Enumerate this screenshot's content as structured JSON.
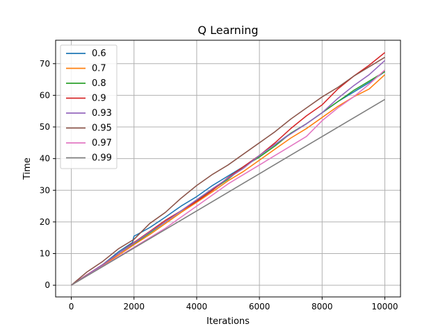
{
  "chart_data": {
    "type": "line",
    "title": "Q Learning",
    "xlabel": "Iterations",
    "ylabel": "Time",
    "xlim": [
      -500,
      10500
    ],
    "ylim": [
      -3.7,
      77.4
    ],
    "xticks": [
      0,
      2000,
      4000,
      6000,
      8000,
      10000
    ],
    "yticks": [
      0,
      10,
      20,
      30,
      40,
      50,
      60,
      70
    ],
    "grid": true,
    "legend_position": "upper left",
    "series": [
      {
        "name": "0.6",
        "color": "#1f77b4",
        "x": [
          0,
          500,
          1000,
          1500,
          1950,
          2000,
          2100,
          2500,
          3000,
          3500,
          4000,
          4500,
          5000,
          5500,
          6000,
          6500,
          7000,
          7500,
          8000,
          8500,
          9000,
          9500,
          10000
        ],
        "y": [
          0,
          3.2,
          6.5,
          10.5,
          13.5,
          15.5,
          16.0,
          18.2,
          21.5,
          25.0,
          28.0,
          31.5,
          34.5,
          37.5,
          41.0,
          44.5,
          48.0,
          51.0,
          54.5,
          58.0,
          61.0,
          64.0,
          67.5
        ]
      },
      {
        "name": "0.7",
        "color": "#ff7f0e",
        "x": [
          0,
          500,
          1000,
          1500,
          2000,
          2500,
          3000,
          3500,
          4000,
          4500,
          5000,
          5500,
          6000,
          6500,
          7000,
          7500,
          8000,
          8500,
          9000,
          9500,
          10000
        ],
        "y": [
          0,
          3.0,
          6.2,
          9.5,
          12.8,
          16.0,
          19.5,
          23.0,
          26.2,
          29.5,
          33.0,
          36.0,
          39.5,
          43.0,
          46.5,
          49.5,
          53.0,
          56.5,
          59.5,
          62.0,
          66.5
        ]
      },
      {
        "name": "0.8",
        "color": "#2ca02c",
        "x": [
          0,
          500,
          1000,
          1500,
          2000,
          2500,
          3000,
          3500,
          4000,
          4500,
          5000,
          5500,
          6000,
          6500,
          7000,
          7500,
          8000,
          8500,
          9000,
          9500,
          10000
        ],
        "y": [
          0,
          3.2,
          6.5,
          10.0,
          13.2,
          16.5,
          20.0,
          23.5,
          26.8,
          30.2,
          33.5,
          37.5,
          40.5,
          44.0,
          48.0,
          51.0,
          54.5,
          58.0,
          61.5,
          64.5,
          67.5
        ]
      },
      {
        "name": "0.9",
        "color": "#d62728",
        "x": [
          0,
          500,
          1000,
          1500,
          2000,
          2500,
          3000,
          3500,
          4000,
          4500,
          5000,
          5500,
          6000,
          6500,
          7000,
          7500,
          8000,
          8500,
          9000,
          9500,
          10000
        ],
        "y": [
          0,
          3.3,
          6.5,
          10.0,
          13.5,
          17.0,
          20.5,
          23.5,
          26.5,
          30.0,
          34.0,
          37.5,
          41.0,
          45.0,
          49.5,
          53.5,
          57.0,
          62.0,
          66.0,
          69.5,
          73.5
        ]
      },
      {
        "name": "0.93",
        "color": "#9467bd",
        "x": [
          0,
          500,
          1000,
          1500,
          2000,
          2500,
          3000,
          3500,
          4000,
          4500,
          5000,
          5500,
          6000,
          6500,
          7000,
          7500,
          8000,
          8500,
          9000,
          9500,
          10000
        ],
        "y": [
          0,
          3.2,
          6.5,
          10.0,
          13.3,
          16.8,
          20.0,
          23.5,
          27.0,
          30.5,
          33.8,
          37.0,
          41.0,
          44.5,
          47.8,
          51.0,
          54.5,
          59.0,
          63.0,
          66.5,
          71.0
        ]
      },
      {
        "name": "0.95",
        "color": "#8c564b",
        "x": [
          0,
          500,
          1000,
          1500,
          2000,
          2500,
          3000,
          3500,
          4000,
          4500,
          5000,
          5500,
          6000,
          6500,
          7000,
          7500,
          8000,
          8500,
          9000,
          9500,
          10000
        ],
        "y": [
          0,
          4.2,
          7.5,
          11.5,
          14.5,
          19.5,
          23.0,
          27.5,
          31.5,
          35.0,
          38.0,
          41.5,
          45.0,
          48.5,
          52.5,
          56.0,
          59.5,
          62.5,
          66.0,
          69.0,
          72.0
        ]
      },
      {
        "name": "0.97",
        "color": "#e377c2",
        "x": [
          0,
          500,
          1000,
          1500,
          2000,
          2500,
          3000,
          3500,
          4000,
          4500,
          5000,
          5500,
          6000,
          6500,
          7000,
          7500,
          8000,
          8500,
          9000,
          9500,
          10000
        ],
        "y": [
          0,
          3.0,
          6.0,
          9.0,
          12.0,
          15.0,
          18.0,
          21.5,
          25.0,
          28.5,
          32.0,
          35.0,
          38.0,
          41.0,
          44.0,
          47.0,
          52.0,
          56.0,
          59.5,
          63.5,
          68.0
        ]
      },
      {
        "name": "0.99",
        "color": "#7f7f7f",
        "x": [
          0,
          10000
        ],
        "y": [
          0,
          58.7
        ]
      }
    ]
  }
}
